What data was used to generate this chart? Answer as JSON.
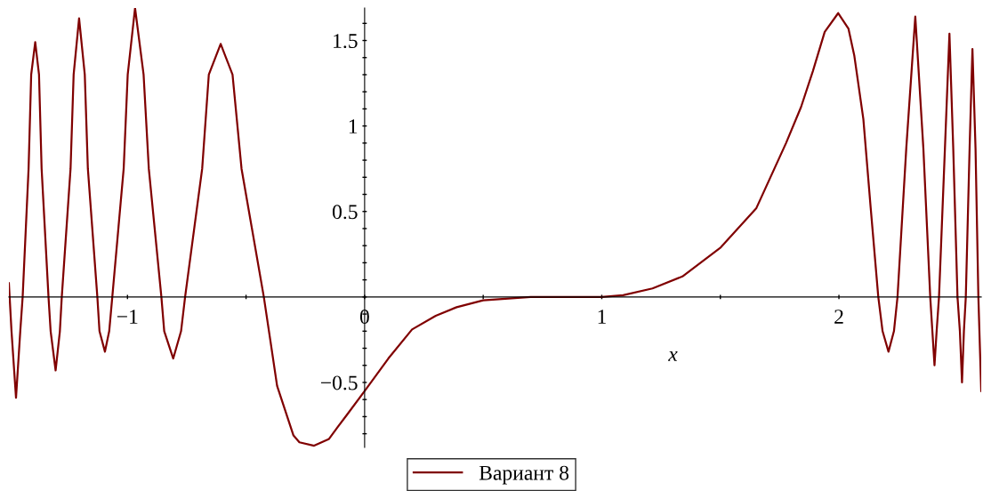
{
  "chart_data": {
    "type": "line",
    "xlabel": "x",
    "xlim": [
      -1.5,
      2.6
    ],
    "ylim": [
      -0.88,
      1.69
    ],
    "xticks": [
      {
        "value": -1,
        "label": "−1"
      },
      {
        "value": -0.5,
        "label": null
      },
      0,
      {
        "value": 0.5,
        "label": null
      },
      1,
      {
        "value": 1.5,
        "label": null
      },
      2,
      {
        "value": 2.5,
        "label": null
      }
    ],
    "yticks": [
      {
        "value": -0.8,
        "label": null
      },
      {
        "value": -0.7,
        "label": null
      },
      {
        "value": -0.6,
        "label": null
      },
      {
        "value": -0.5,
        "label": "−0.5"
      },
      {
        "value": -0.4,
        "label": null
      },
      {
        "value": -0.3,
        "label": null
      },
      {
        "value": -0.2,
        "label": null
      },
      {
        "value": -0.1,
        "label": null
      },
      {
        "value": 0,
        "label": null
      },
      {
        "value": 0.1,
        "label": null
      },
      {
        "value": 0.2,
        "label": null
      },
      {
        "value": 0.3,
        "label": null
      },
      {
        "value": 0.4,
        "label": null
      },
      0.5,
      {
        "value": 0.6,
        "label": null
      },
      {
        "value": 0.7,
        "label": null
      },
      {
        "value": 0.8,
        "label": null
      },
      {
        "value": 0.9,
        "label": null
      },
      1,
      {
        "value": 1.1,
        "label": null
      },
      {
        "value": 1.2,
        "label": null
      },
      {
        "value": 1.3,
        "label": null
      },
      {
        "value": 1.4,
        "label": null
      },
      1.5,
      {
        "value": 1.6,
        "label": null
      }
    ],
    "grid": false,
    "legend": "bottom",
    "marker": "none",
    "line_style": "solid",
    "series": [
      {
        "name": "Вариант 8",
        "color": "#800000",
        "x": [
          -1.5,
          -1.489,
          -1.47,
          -1.452,
          -1.442,
          -1.417,
          -1.406,
          -1.389,
          -1.373,
          -1.362,
          -1.333,
          -1.324,
          -1.303,
          -1.285,
          -1.277,
          -1.24,
          -1.227,
          -1.204,
          -1.18,
          -1.167,
          -1.127,
          -1.118,
          -1.095,
          -1.077,
          -1.064,
          -1.016,
          -0.999,
          -0.968,
          -0.932,
          -0.91,
          -0.857,
          -0.845,
          -0.807,
          -0.774,
          -0.757,
          -0.685,
          -0.657,
          -0.607,
          -0.557,
          -0.519,
          -0.425,
          -0.398,
          -0.369,
          -0.3,
          -0.275,
          -0.213,
          -0.15,
          -0.113,
          -0.075,
          0,
          0.1,
          0.2,
          0.3,
          0.388,
          0.5,
          0.7,
          1.0,
          1.09,
          1.214,
          1.34,
          1.502,
          1.652,
          1.777,
          1.84,
          1.89,
          1.94,
          1.997,
          2.04,
          2.065,
          2.103,
          2.134,
          2.166,
          2.184,
          2.209,
          2.232,
          2.247,
          2.284,
          2.322,
          2.356,
          2.385,
          2.394,
          2.403,
          2.412,
          2.422,
          2.447,
          2.466,
          2.482,
          2.5,
          2.51,
          2.519,
          2.527,
          2.535,
          2.551,
          2.563,
          2.576,
          2.588,
          2.6
        ],
        "values": [
          0.08,
          -0.2,
          -0.59,
          -0.2,
          0,
          0.75,
          1.3,
          1.49,
          1.3,
          0.75,
          0,
          -0.2,
          -0.43,
          -0.2,
          0,
          0.75,
          1.3,
          1.63,
          1.3,
          0.75,
          0,
          -0.2,
          -0.32,
          -0.2,
          0,
          0.75,
          1.3,
          1.69,
          1.3,
          0.75,
          0,
          -0.2,
          -0.36,
          -0.2,
          0,
          0.75,
          1.3,
          1.48,
          1.3,
          0.75,
          0,
          -0.25,
          -0.52,
          -0.81,
          -0.85,
          -0.87,
          -0.83,
          -0.76,
          -0.69,
          -0.55,
          -0.36,
          -0.19,
          -0.11,
          -0.06,
          -0.02,
          0,
          0,
          0.01,
          0.05,
          0.12,
          0.29,
          0.52,
          0.9,
          1.11,
          1.32,
          1.55,
          1.66,
          1.57,
          1.41,
          1.04,
          0.52,
          0,
          -0.2,
          -0.32,
          -0.2,
          0,
          0.87,
          1.64,
          0.87,
          0,
          -0.2,
          -0.4,
          -0.2,
          0,
          0.87,
          1.54,
          0.87,
          0,
          -0.2,
          -0.5,
          -0.2,
          0,
          0.87,
          1.45,
          0.87,
          0,
          -0.55
        ]
      }
    ]
  }
}
